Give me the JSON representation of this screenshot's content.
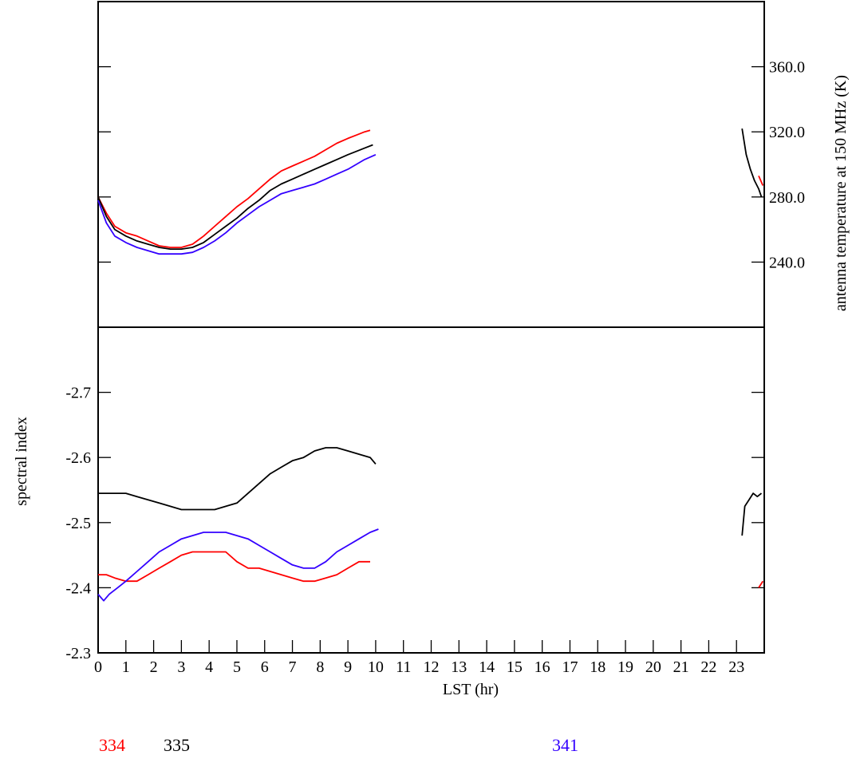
{
  "chart_data": [
    {
      "type": "line",
      "panel": "top",
      "ylabel": "antenna temperature at 150 MHz (K)",
      "yaxis_side": "right",
      "xlim": [
        0,
        24
      ],
      "ylim": [
        200,
        400
      ],
      "yticks": [
        240.0,
        280.0,
        320.0,
        360.0
      ],
      "ytick_labels": [
        "240.0",
        "280.0",
        "320.0",
        "360.0"
      ],
      "grid": false,
      "series": [
        {
          "name": "334",
          "color": "#ff0000",
          "x": [
            0.0,
            0.3,
            0.6,
            1.0,
            1.4,
            1.8,
            2.2,
            2.6,
            3.0,
            3.4,
            3.8,
            4.2,
            4.6,
            5.0,
            5.4,
            5.8,
            6.2,
            6.6,
            7.0,
            7.4,
            7.8,
            8.2,
            8.6,
            9.0,
            9.3,
            9.6,
            9.8
          ],
          "y": [
            280,
            270,
            262,
            258,
            256,
            253,
            250,
            249,
            249,
            251,
            256,
            262,
            268,
            274,
            279,
            285,
            291,
            296,
            299,
            302,
            305,
            309,
            313,
            316,
            318,
            320,
            321
          ]
        },
        {
          "name": "335",
          "color": "#000000",
          "x": [
            0.0,
            0.3,
            0.6,
            1.0,
            1.4,
            1.8,
            2.2,
            2.6,
            3.0,
            3.4,
            3.8,
            4.2,
            4.6,
            5.0,
            5.4,
            5.8,
            6.2,
            6.6,
            7.0,
            7.4,
            7.8,
            8.2,
            8.6,
            9.0,
            9.3,
            9.6,
            9.9
          ],
          "y": [
            280,
            268,
            260,
            256,
            253,
            251,
            249,
            248,
            248,
            249,
            252,
            257,
            262,
            267,
            273,
            278,
            284,
            288,
            291,
            294,
            297,
            300,
            303,
            306,
            308,
            310,
            312
          ]
        },
        {
          "name": "341",
          "color": "#3300ff",
          "x": [
            0.0,
            0.3,
            0.6,
            1.0,
            1.4,
            1.8,
            2.2,
            2.6,
            3.0,
            3.4,
            3.8,
            4.2,
            4.6,
            5.0,
            5.4,
            5.8,
            6.2,
            6.6,
            7.0,
            7.4,
            7.8,
            8.2,
            8.6,
            9.0,
            9.3,
            9.6,
            10.0
          ],
          "y": [
            278,
            264,
            256,
            252,
            249,
            247,
            245,
            245,
            245,
            246,
            249,
            253,
            258,
            264,
            269,
            274,
            278,
            282,
            284,
            286,
            288,
            291,
            294,
            297,
            300,
            303,
            306
          ]
        },
        {
          "name": "335",
          "color": "#000000",
          "x": [
            23.2,
            23.35,
            23.5,
            23.65,
            23.8,
            23.9
          ],
          "y": [
            322,
            306,
            297,
            290,
            285,
            280
          ]
        },
        {
          "name": "334",
          "color": "#ff0000",
          "x": [
            23.8,
            23.95
          ],
          "y": [
            293,
            287
          ]
        }
      ]
    },
    {
      "type": "line",
      "panel": "bottom",
      "xlabel": "LST (hr)",
      "ylabel": "spectral index",
      "xlim": [
        0,
        24
      ],
      "ylim": [
        -2.3,
        -2.8
      ],
      "xticks": [
        0,
        1,
        2,
        3,
        4,
        5,
        6,
        7,
        8,
        9,
        10,
        11,
        12,
        13,
        14,
        15,
        16,
        17,
        18,
        19,
        20,
        21,
        22,
        23
      ],
      "xtick_labels": [
        "0",
        "1",
        "2",
        "3",
        "4",
        "5",
        "6",
        "7",
        "8",
        "9",
        "10",
        "11",
        "12",
        "13",
        "14",
        "15",
        "16",
        "17",
        "18",
        "19",
        "20",
        "21",
        "22",
        "23"
      ],
      "yticks": [
        -2.3,
        -2.4,
        -2.5,
        -2.6,
        -2.7
      ],
      "ytick_labels": [
        "-2.3",
        "-2.4",
        "-2.5",
        "-2.6",
        "-2.7"
      ],
      "grid": false,
      "series": [
        {
          "name": "334",
          "color": "#ff0000",
          "x": [
            0.0,
            0.3,
            0.6,
            1.0,
            1.4,
            1.8,
            2.2,
            2.6,
            3.0,
            3.4,
            3.8,
            4.2,
            4.6,
            5.0,
            5.4,
            5.8,
            6.2,
            6.6,
            7.0,
            7.4,
            7.8,
            8.2,
            8.6,
            9.0,
            9.4,
            9.8
          ],
          "y": [
            -2.42,
            -2.42,
            -2.415,
            -2.41,
            -2.41,
            -2.42,
            -2.43,
            -2.44,
            -2.45,
            -2.455,
            -2.455,
            -2.455,
            -2.455,
            -2.44,
            -2.43,
            -2.43,
            -2.425,
            -2.42,
            -2.415,
            -2.41,
            -2.41,
            -2.415,
            -2.42,
            -2.43,
            -2.44,
            -2.44
          ]
        },
        {
          "name": "335",
          "color": "#000000",
          "x": [
            0.0,
            0.3,
            0.6,
            1.0,
            1.4,
            1.8,
            2.2,
            2.6,
            3.0,
            3.4,
            3.8,
            4.2,
            4.6,
            5.0,
            5.4,
            5.8,
            6.2,
            6.6,
            7.0,
            7.4,
            7.8,
            8.2,
            8.6,
            9.0,
            9.4,
            9.8,
            10.0
          ],
          "y": [
            -2.545,
            -2.545,
            -2.545,
            -2.545,
            -2.54,
            -2.535,
            -2.53,
            -2.525,
            -2.52,
            -2.52,
            -2.52,
            -2.52,
            -2.525,
            -2.53,
            -2.545,
            -2.56,
            -2.575,
            -2.585,
            -2.595,
            -2.6,
            -2.61,
            -2.615,
            -2.615,
            -2.61,
            -2.605,
            -2.6,
            -2.59
          ]
        },
        {
          "name": "341",
          "color": "#3300ff",
          "x": [
            0.0,
            0.2,
            0.4,
            0.7,
            1.0,
            1.4,
            1.8,
            2.2,
            2.6,
            3.0,
            3.4,
            3.8,
            4.2,
            4.6,
            5.0,
            5.4,
            5.8,
            6.2,
            6.6,
            7.0,
            7.4,
            7.8,
            8.2,
            8.6,
            9.0,
            9.4,
            9.8,
            10.1
          ],
          "y": [
            -2.39,
            -2.38,
            -2.39,
            -2.4,
            -2.41,
            -2.425,
            -2.44,
            -2.455,
            -2.465,
            -2.475,
            -2.48,
            -2.485,
            -2.485,
            -2.485,
            -2.48,
            -2.475,
            -2.465,
            -2.455,
            -2.445,
            -2.435,
            -2.43,
            -2.43,
            -2.44,
            -2.455,
            -2.465,
            -2.475,
            -2.485,
            -2.49
          ]
        },
        {
          "name": "335",
          "color": "#000000",
          "x": [
            23.2,
            23.3,
            23.45,
            23.6,
            23.75,
            23.9
          ],
          "y": [
            -2.48,
            -2.525,
            -2.535,
            -2.545,
            -2.54,
            -2.545
          ]
        },
        {
          "name": "334",
          "color": "#ff0000",
          "x": [
            23.8,
            23.95
          ],
          "y": [
            -2.4,
            -2.41
          ]
        }
      ]
    }
  ],
  "legend": [
    {
      "label": "334",
      "color": "#ff0000"
    },
    {
      "label": "335",
      "color": "#000000"
    },
    {
      "label": "341",
      "color": "#3300ff"
    }
  ]
}
